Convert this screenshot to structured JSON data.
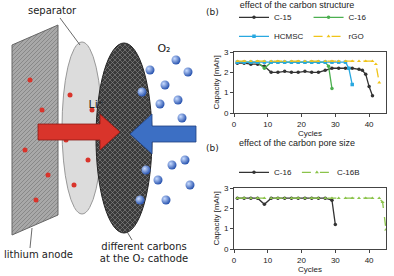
{
  "diagram": {
    "labels": {
      "separator": "separator",
      "ion": "Li⁺",
      "gas": "O₂",
      "anode": "lithium anode",
      "cathode": "different carbons at the O₂ cathode"
    }
  },
  "chart_data": [
    {
      "type": "line",
      "title": "effect of the carbon structure",
      "x_label": "Cycles",
      "y_label": "Capacity [mAh]",
      "annotations": [
        {
          "text": "(b)"
        }
      ],
      "xlim": [
        0,
        45
      ],
      "xticks": [
        0,
        10,
        20,
        30,
        40
      ],
      "ylim": [
        0,
        3
      ],
      "yticks": [
        0,
        1,
        2,
        3
      ],
      "grid": false,
      "legend": "top",
      "series": [
        {
          "name": "C-15",
          "color": "#333333",
          "marker": "circle",
          "line_style": "solid",
          "x": [
            1,
            3,
            5,
            7,
            9,
            11,
            13,
            15,
            17,
            19,
            21,
            23,
            25,
            27,
            29,
            31,
            33,
            35,
            37,
            38,
            39,
            40,
            41
          ],
          "values": [
            2.45,
            2.45,
            2.4,
            2.4,
            2.3,
            2.0,
            2.0,
            2.05,
            2.0,
            2.0,
            2.05,
            2.0,
            2.0,
            2.1,
            2.2,
            2.2,
            2.2,
            2.2,
            2.15,
            2.1,
            1.9,
            1.3,
            0.85
          ]
        },
        {
          "name": "C-16",
          "color": "#4caf50",
          "marker": "circle",
          "line_style": "solid",
          "x": [
            1,
            3,
            5,
            7,
            9,
            11,
            13,
            15,
            17,
            19,
            21,
            23,
            25,
            27,
            28,
            29
          ],
          "values": [
            2.5,
            2.5,
            2.5,
            2.5,
            2.2,
            2.5,
            2.5,
            2.5,
            2.5,
            2.5,
            2.5,
            2.5,
            2.5,
            2.5,
            2.3,
            1.2
          ]
        },
        {
          "name": "HCMSC",
          "color": "#29a8e0",
          "marker": "square",
          "line_style": "solid",
          "x": [
            1,
            3,
            5,
            7,
            9,
            11,
            13,
            15,
            17,
            19,
            21,
            23,
            25,
            27,
            29,
            31,
            33,
            34,
            35
          ],
          "values": [
            2.5,
            2.5,
            2.5,
            2.5,
            2.5,
            2.5,
            2.5,
            2.5,
            2.5,
            2.5,
            2.5,
            2.5,
            2.5,
            2.5,
            2.5,
            2.5,
            2.5,
            2.2,
            1.4
          ]
        },
        {
          "name": "rGO",
          "color": "#f0c419",
          "marker": "triangle",
          "line_style": "dash",
          "x": [
            1,
            3,
            5,
            7,
            9,
            11,
            13,
            15,
            17,
            19,
            21,
            23,
            25,
            27,
            29,
            31,
            33,
            35,
            37,
            39,
            41,
            42,
            43
          ],
          "values": [
            2.55,
            2.55,
            2.55,
            2.55,
            2.55,
            2.55,
            2.55,
            2.55,
            2.55,
            2.55,
            2.55,
            2.55,
            2.55,
            2.55,
            2.55,
            2.55,
            2.55,
            2.55,
            2.55,
            2.55,
            2.55,
            2.4,
            1.5
          ]
        }
      ]
    },
    {
      "type": "line",
      "title": "effect of the carbon pore size",
      "x_label": "Cycles",
      "y_label": "Capacity [mAh]",
      "annotations": [
        {
          "text": "(b)"
        }
      ],
      "xlim": [
        0,
        45
      ],
      "xticks": [
        0,
        10,
        20,
        30,
        40
      ],
      "ylim": [
        0,
        3
      ],
      "yticks": [
        0,
        1,
        2,
        3
      ],
      "grid": false,
      "legend": "top",
      "series": [
        {
          "name": "C-16",
          "color": "#333333",
          "marker": "circle",
          "line_style": "solid",
          "x": [
            1,
            3,
            5,
            7,
            9,
            11,
            13,
            15,
            17,
            19,
            21,
            23,
            25,
            27,
            29,
            30
          ],
          "values": [
            2.5,
            2.5,
            2.5,
            2.5,
            2.2,
            2.5,
            2.5,
            2.5,
            2.5,
            2.5,
            2.5,
            2.5,
            2.5,
            2.5,
            2.4,
            1.2
          ]
        },
        {
          "name": "C-16B",
          "color": "#8bc34a",
          "marker": "triangle",
          "line_style": "dash",
          "x": [
            1,
            3,
            5,
            7,
            9,
            11,
            13,
            15,
            17,
            19,
            21,
            23,
            25,
            27,
            29,
            31,
            33,
            35,
            37,
            39,
            41,
            43,
            44,
            45
          ],
          "values": [
            2.5,
            2.5,
            2.5,
            2.5,
            2.5,
            2.5,
            2.5,
            2.5,
            2.5,
            2.5,
            2.5,
            2.5,
            2.5,
            2.5,
            2.5,
            2.5,
            2.5,
            2.5,
            2.5,
            2.5,
            2.5,
            2.5,
            2.3,
            0.95
          ]
        }
      ]
    }
  ]
}
